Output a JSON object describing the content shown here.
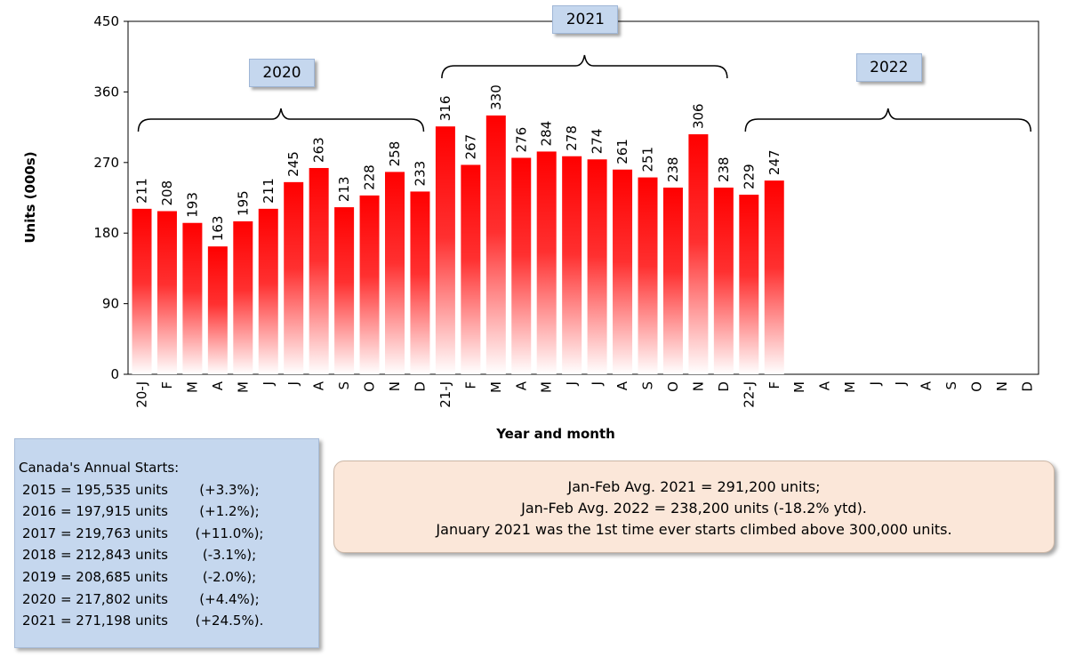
{
  "chart_data": {
    "type": "bar",
    "title": "",
    "xlabel": "Year and month",
    "ylabel": "Units (000s)",
    "ylim": [
      0,
      450
    ],
    "yticks": [
      0,
      90,
      180,
      270,
      360,
      450
    ],
    "grid": false,
    "categories": [
      "20-J",
      "F",
      "M",
      "A",
      "M",
      "J",
      "J",
      "A",
      "S",
      "O",
      "N",
      "D",
      "21-J",
      "F",
      "M",
      "A",
      "M",
      "J",
      "J",
      "A",
      "S",
      "O",
      "N",
      "D",
      "22-J",
      "F",
      "M",
      "A",
      "M",
      "J",
      "J",
      "A",
      "S",
      "O",
      "N",
      "D"
    ],
    "values": [
      211,
      208,
      193,
      163,
      195,
      211,
      245,
      263,
      213,
      228,
      258,
      233,
      316,
      267,
      330,
      276,
      284,
      278,
      274,
      261,
      251,
      238,
      306,
      238,
      229,
      247,
      null,
      null,
      null,
      null,
      null,
      null,
      null,
      null,
      null,
      null
    ],
    "bar_color_top": "#ff0000",
    "bar_color_bottom": "#ffffff",
    "year_groups": [
      {
        "label": "2020",
        "start": 0,
        "end": 11
      },
      {
        "label": "2021",
        "start": 12,
        "end": 23
      },
      {
        "label": "2022",
        "start": 24,
        "end": 35
      }
    ]
  },
  "annual_box": {
    "heading": "Canada's Annual Starts:",
    "rows": [
      {
        "year_text": "2015 = 195,535 units",
        "pct": "(+3.3%);"
      },
      {
        "year_text": "2016 = 197,915 units",
        "pct": "(+1.2%);"
      },
      {
        "year_text": "2017 = 219,763 units",
        "pct": "(+11.0%);"
      },
      {
        "year_text": "2018 = 212,843 units",
        "pct": "(-3.1%);"
      },
      {
        "year_text": "2019 = 208,685 units",
        "pct": "(-2.0%);"
      },
      {
        "year_text": "2020 = 217,802 units",
        "pct": "(+4.4%);"
      },
      {
        "year_text": "2021 = 271,198 units",
        "pct": "(+24.5%)."
      }
    ]
  },
  "avg_box": {
    "line1": "Jan-Feb Avg. 2021 = 291,200 units;",
    "line2": "Jan-Feb Avg. 2022 = 238,200 units (-18.2% ytd).",
    "line3": "January 2021 was the 1st time ever starts climbed above 300,000 units."
  }
}
